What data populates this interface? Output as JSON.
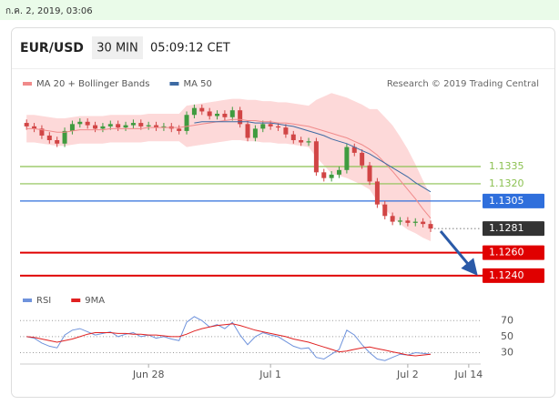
{
  "header": {
    "timestamp": "ก.ค. 2, 2019, 03:06"
  },
  "chart_data": [
    {
      "type": "candlestick",
      "symbol": "EUR/USD",
      "timeframe": "30 MIN",
      "time": "05:09:12 CET",
      "credit": "Research © 2019 Trading Central",
      "up_color": "#3f9b3f",
      "down_color": "#d14545",
      "xlim": [
        -0.5,
        61
      ],
      "ylim": [
        1.1232,
        1.14
      ],
      "open": [
        1.1373,
        1.137,
        1.1368,
        1.1362,
        1.1358,
        1.1355,
        1.1366,
        1.1372,
        1.1374,
        1.1371,
        1.1368,
        1.137,
        1.1372,
        1.1369,
        1.1371,
        1.1373,
        1.137,
        1.1371,
        1.1369,
        1.137,
        1.1368,
        1.1366,
        1.138,
        1.1386,
        1.1383,
        1.1379,
        1.1381,
        1.1378,
        1.1384,
        1.1372,
        1.136,
        1.1368,
        1.1372,
        1.137,
        1.1369,
        1.1363,
        1.1358,
        1.1356,
        1.1357,
        1.133,
        1.1325,
        1.1328,
        1.1332,
        1.1352,
        1.1347,
        1.1336,
        1.1322,
        1.1302,
        1.1292,
        1.1287,
        1.1288,
        1.1286,
        1.1287,
        1.1285
      ],
      "high": [
        1.1376,
        1.1373,
        1.1371,
        1.1365,
        1.1361,
        1.1369,
        1.1375,
        1.1377,
        1.1377,
        1.1374,
        1.1373,
        1.1375,
        1.1375,
        1.1374,
        1.1376,
        1.1376,
        1.1374,
        1.1374,
        1.1373,
        1.1373,
        1.1371,
        1.1383,
        1.1389,
        1.1389,
        1.1386,
        1.1384,
        1.1384,
        1.1387,
        1.1387,
        1.1375,
        1.1371,
        1.1375,
        1.1375,
        1.1373,
        1.1372,
        1.1366,
        1.1361,
        1.136,
        1.136,
        1.1333,
        1.1331,
        1.1335,
        1.1355,
        1.1355,
        1.135,
        1.1339,
        1.1325,
        1.1305,
        1.1295,
        1.1291,
        1.1291,
        1.129,
        1.129,
        1.1288
      ],
      "low": [
        1.1367,
        1.1365,
        1.1359,
        1.1355,
        1.1352,
        1.1352,
        1.1363,
        1.1369,
        1.1368,
        1.1365,
        1.1365,
        1.1367,
        1.1366,
        1.1366,
        1.1368,
        1.1367,
        1.1367,
        1.1366,
        1.1366,
        1.1365,
        1.1363,
        1.1363,
        1.1377,
        1.138,
        1.1376,
        1.1376,
        1.1375,
        1.1375,
        1.1369,
        1.1357,
        1.1357,
        1.1365,
        1.1367,
        1.1366,
        1.136,
        1.1355,
        1.1353,
        1.1353,
        1.1327,
        1.1322,
        1.1322,
        1.1325,
        1.1329,
        1.1344,
        1.1333,
        1.1319,
        1.1299,
        1.1289,
        1.1284,
        1.1284,
        1.1283,
        1.1283,
        1.1282,
        1.1278
      ],
      "close": [
        1.137,
        1.1368,
        1.1362,
        1.1358,
        1.1355,
        1.1366,
        1.1372,
        1.1374,
        1.1371,
        1.1368,
        1.137,
        1.1372,
        1.1369,
        1.1371,
        1.1373,
        1.137,
        1.1371,
        1.1369,
        1.137,
        1.1368,
        1.1366,
        1.138,
        1.1386,
        1.1383,
        1.1379,
        1.1381,
        1.1378,
        1.1384,
        1.1372,
        1.136,
        1.1368,
        1.1372,
        1.137,
        1.1369,
        1.1363,
        1.1358,
        1.1356,
        1.1357,
        1.133,
        1.1325,
        1.1328,
        1.1332,
        1.1352,
        1.1347,
        1.1336,
        1.1322,
        1.1302,
        1.1292,
        1.1287,
        1.1288,
        1.1286,
        1.1287,
        1.1285,
        1.1281
      ],
      "series": [
        {
          "name": "MA 20 + Bollinger Bands",
          "color": "#f08a8a",
          "band_color": "#fdd9d9",
          "values": [
            1.1368,
            1.1368,
            1.1367,
            1.1366,
            1.1365,
            1.1365,
            1.1366,
            1.1367,
            1.1367,
            1.1367,
            1.1367,
            1.1368,
            1.1368,
            1.1368,
            1.1368,
            1.1368,
            1.1369,
            1.1369,
            1.1369,
            1.1369,
            1.1369,
            1.137,
            1.1371,
            1.1372,
            1.1373,
            1.1374,
            1.1375,
            1.1376,
            1.1376,
            1.1375,
            1.1375,
            1.1374,
            1.1374,
            1.1373,
            1.1373,
            1.1372,
            1.1371,
            1.137,
            1.1368,
            1.1366,
            1.1364,
            1.1362,
            1.136,
            1.1357,
            1.1354,
            1.135,
            1.1345,
            1.1338,
            1.1331,
            1.1323,
            1.1315,
            1.1307,
            1.1298,
            1.129
          ],
          "upper": [
            1.138,
            1.138,
            1.1379,
            1.1378,
            1.1377,
            1.1377,
            1.1378,
            1.1379,
            1.1379,
            1.1379,
            1.1379,
            1.138,
            1.138,
            1.138,
            1.138,
            1.138,
            1.1381,
            1.1381,
            1.1381,
            1.1381,
            1.1381,
            1.1388,
            1.1389,
            1.139,
            1.1391,
            1.1392,
            1.1393,
            1.1394,
            1.1394,
            1.1393,
            1.1393,
            1.1392,
            1.1392,
            1.1391,
            1.1391,
            1.139,
            1.1389,
            1.1388,
            1.1393,
            1.1396,
            1.1399,
            1.1397,
            1.1395,
            1.1392,
            1.1389,
            1.1385,
            1.1385,
            1.1378,
            1.1371,
            1.1361,
            1.135,
            1.1337,
            1.1323,
            1.131
          ],
          "lower": [
            1.1356,
            1.1356,
            1.1355,
            1.1354,
            1.1353,
            1.1353,
            1.1354,
            1.1355,
            1.1355,
            1.1355,
            1.1355,
            1.1356,
            1.1356,
            1.1356,
            1.1356,
            1.1356,
            1.1357,
            1.1357,
            1.1357,
            1.1357,
            1.1357,
            1.1352,
            1.1353,
            1.1354,
            1.1355,
            1.1356,
            1.1357,
            1.1358,
            1.1358,
            1.1357,
            1.1357,
            1.1356,
            1.1356,
            1.1355,
            1.1355,
            1.1354,
            1.1353,
            1.1352,
            1.1343,
            1.1336,
            1.1329,
            1.1327,
            1.1325,
            1.1322,
            1.1319,
            1.1315,
            1.1305,
            1.1298,
            1.1291,
            1.1285,
            1.128,
            1.1277,
            1.1273,
            1.127
          ]
        },
        {
          "name": "MA 50",
          "color": "#3d6aa3",
          "values": [
            null,
            null,
            null,
            null,
            null,
            null,
            null,
            null,
            null,
            null,
            null,
            null,
            null,
            null,
            null,
            null,
            null,
            null,
            null,
            null,
            null,
            null,
            1.1373,
            1.1374,
            1.1374,
            1.1374,
            1.1374,
            1.1374,
            1.1374,
            1.1374,
            1.1373,
            1.1373,
            1.1373,
            1.1372,
            1.1371,
            1.137,
            1.1368,
            1.1366,
            1.1364,
            1.1362,
            1.1359,
            1.1357,
            1.1355,
            1.1352,
            1.1349,
            1.1346,
            1.1342,
            1.1338,
            1.1334,
            1.133,
            1.1326,
            1.1321,
            1.1317,
            1.1313
          ]
        }
      ],
      "levels": [
        {
          "value": 1.1335,
          "label": "1.1335",
          "color": "#8cc152",
          "style": "text"
        },
        {
          "value": 1.132,
          "label": "1.1320",
          "color": "#8cc152",
          "style": "text"
        },
        {
          "value": 1.1305,
          "label": "1.1305",
          "color": "#2f6fdc",
          "style": "box"
        },
        {
          "value": 1.1281,
          "label": "1.1281",
          "color": "#333333",
          "style": "dotted"
        },
        {
          "value": 1.126,
          "label": "1.1260",
          "color": "#e00000",
          "style": "bold"
        },
        {
          "value": 1.124,
          "label": "1.1240",
          "color": "#e00000",
          "style": "bold"
        }
      ]
    },
    {
      "type": "line",
      "xlim": [
        -0.5,
        61
      ],
      "ylim": [
        18,
        84
      ],
      "yticks": [
        70,
        50,
        30
      ],
      "xticks": [
        {
          "value": 16,
          "label": "Jun 28"
        },
        {
          "value": 32,
          "label": "Jul 1"
        },
        {
          "value": 50,
          "label": "Jul 2"
        },
        {
          "value": 58,
          "label": "Jul 14"
        }
      ],
      "series": [
        {
          "name": "RSI",
          "color": "#6f93dc",
          "values": [
            50,
            48,
            42,
            38,
            36,
            52,
            58,
            60,
            56,
            52,
            54,
            56,
            50,
            53,
            55,
            50,
            52,
            48,
            50,
            47,
            45,
            68,
            75,
            70,
            62,
            65,
            60,
            68,
            52,
            40,
            50,
            55,
            52,
            50,
            44,
            38,
            35,
            36,
            24,
            22,
            28,
            34,
            58,
            52,
            40,
            30,
            22,
            20,
            24,
            28,
            27,
            30,
            29,
            28
          ]
        },
        {
          "name": "9MA",
          "color": "#e02020",
          "values": [
            50,
            49,
            47,
            45,
            43,
            45,
            47,
            50,
            53,
            55,
            55,
            55,
            54,
            54,
            53,
            53,
            52,
            52,
            51,
            50,
            50,
            53,
            57,
            60,
            62,
            64,
            65,
            66,
            64,
            61,
            58,
            56,
            54,
            52,
            50,
            47,
            45,
            43,
            40,
            37,
            34,
            31,
            32,
            34,
            36,
            37,
            35,
            33,
            31,
            29,
            27,
            26,
            27,
            28
          ]
        }
      ]
    }
  ]
}
